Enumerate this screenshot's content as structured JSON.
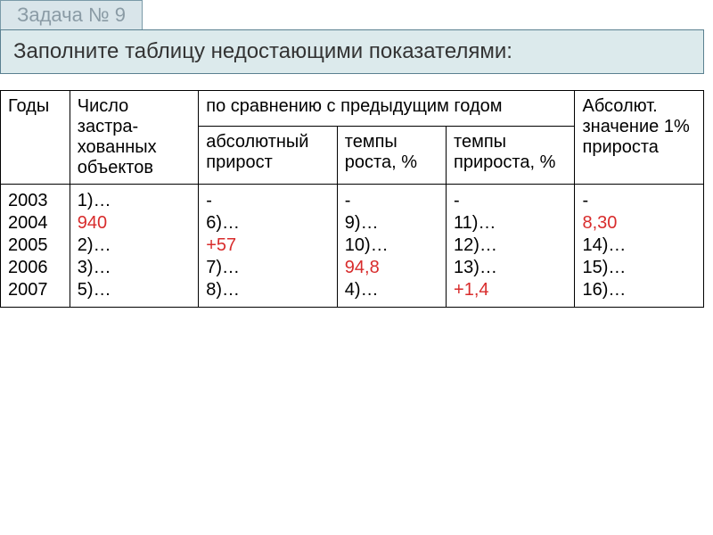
{
  "task_label": "Задача № 9",
  "instruction": "Заполните таблицу недостающими показателями:",
  "headers": {
    "years": "Годы",
    "count": "Число застра-хованных объектов",
    "vs_prev": "по сравнению с предыдущим годом",
    "abs_inc": "абсолютный прирост",
    "growth_rate": "темпы роста, %",
    "inc_rate": "темпы прироста, %",
    "abs_1pct": "Абсолют. значение 1% прироста"
  },
  "rows": [
    {
      "year": "2003",
      "count": "1)…",
      "count_red": false,
      "abs": "-",
      "abs_red": false,
      "growth": "-",
      "growth_red": false,
      "inc": "-",
      "inc_red": false,
      "pct1": "-",
      "pct1_red": false
    },
    {
      "year": "2004",
      "count": "940",
      "count_red": true,
      "abs": "6)…",
      "abs_red": false,
      "growth": "9)…",
      "growth_red": false,
      "inc": "11)…",
      "inc_red": false,
      "pct1": "8,30",
      "pct1_red": true
    },
    {
      "year": "2005",
      "count": "2)…",
      "count_red": false,
      "abs": "+57",
      "abs_red": true,
      "growth": "10)…",
      "growth_red": false,
      "inc": "12)…",
      "inc_red": false,
      "pct1": "14)…",
      "pct1_red": false
    },
    {
      "year": "2006",
      "count": "3)…",
      "count_red": false,
      "abs": "7)…",
      "abs_red": false,
      "growth": "94,8",
      "growth_red": true,
      "inc": "13)…",
      "inc_red": false,
      "pct1": "15)…",
      "pct1_red": false
    },
    {
      "year": "2007",
      "count": "5)…",
      "count_red": false,
      "abs": "8)…",
      "abs_red": false,
      "growth": "4)…",
      "growth_red": false,
      "inc": "+1,4",
      "inc_red": true,
      "pct1": "16)…",
      "pct1_red": false
    }
  ],
  "colors": {
    "red": "#d82c2c",
    "header_bg": "#d9e5ea",
    "instruction_bg": "#dceaec",
    "border": "#000000"
  }
}
